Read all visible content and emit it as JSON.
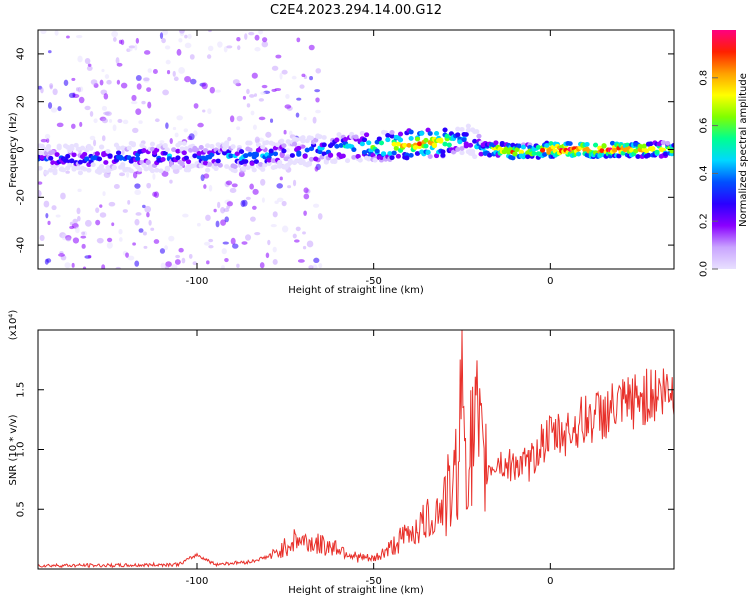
{
  "title": "C2E4.2023.294.14.00.G12",
  "colors": {
    "spectral_colormap": [
      "#e8e0ff",
      "#c9a4ff",
      "#8a00ff",
      "#2a00ff",
      "#0050ff",
      "#00d8ff",
      "#00ff90",
      "#80ff00",
      "#ffff00",
      "#ffa000",
      "#ff2000",
      "#ff0080"
    ],
    "snr_line": "#e8302a"
  },
  "chart_data": [
    {
      "type": "heatmap",
      "title": "C2E4.2023.294.14.00.G12",
      "xlabel": "Height of straight line (km)",
      "ylabel": "Frequency (Hz)",
      "xlim": [
        -145,
        35
      ],
      "ylim": [
        -50,
        50
      ],
      "x_ticks": [
        -100,
        -50,
        0
      ],
      "y_ticks": [
        -40,
        -20,
        0,
        20,
        40
      ],
      "colorbar": {
        "label": "Normalized spectral amplitude",
        "range": [
          0,
          1
        ],
        "ticks": [
          "0.0",
          "0.2",
          "0.4",
          "0.6",
          "0.8"
        ]
      },
      "ridge": {
        "x": [
          -145,
          -130,
          -115,
          -100,
          -85,
          -70,
          -60,
          -50,
          -40,
          -30,
          -25,
          -22,
          -20,
          -15,
          -10,
          -5,
          0,
          10,
          20,
          35
        ],
        "frequency_hz": [
          -4,
          -4,
          -3,
          -3,
          -3,
          -1,
          1,
          1,
          2,
          3,
          4,
          4,
          0,
          0,
          -1,
          -1,
          0,
          0,
          0,
          0
        ],
        "amplitude": [
          0.3,
          0.35,
          0.4,
          0.38,
          0.45,
          0.4,
          0.5,
          0.6,
          0.8,
          0.75,
          0.45,
          0.35,
          0.6,
          0.8,
          0.85,
          0.7,
          0.95,
          0.95,
          0.9,
          0.7
        ]
      }
    },
    {
      "type": "line",
      "xlabel": "Height of straight line (km)",
      "ylabel": "SNR (10 * v/v)",
      "y_multiplier": "(x10⁴)",
      "xlim": [
        -145,
        35
      ],
      "ylim": [
        0,
        2.0
      ],
      "x_ticks": [
        -100,
        -50,
        0
      ],
      "y_ticks": [
        "0.5",
        "1.0",
        "1.5"
      ],
      "y_tick_values": [
        0.5,
        1.0,
        1.5
      ],
      "series": [
        {
          "x": [
            -145,
            -120,
            -105,
            -100,
            -95,
            -85,
            -78,
            -72,
            -65,
            -60,
            -55,
            -50,
            -45,
            -40,
            -35,
            -30,
            -27,
            -25,
            -23,
            -21,
            -19,
            -17,
            -15,
            -12,
            -10,
            -8,
            -5,
            -3,
            0,
            5,
            10,
            15,
            20,
            25,
            30,
            35
          ],
          "y": [
            0.03,
            0.03,
            0.04,
            0.12,
            0.04,
            0.06,
            0.12,
            0.25,
            0.2,
            0.18,
            0.1,
            0.08,
            0.18,
            0.3,
            0.4,
            0.55,
            0.7,
            1.5,
            0.9,
            1.2,
            0.8,
            0.85,
            0.9,
            0.85,
            0.9,
            0.85,
            0.9,
            1.05,
            1.1,
            1.15,
            1.25,
            1.3,
            1.35,
            1.42,
            1.47,
            1.48
          ]
        }
      ]
    }
  ]
}
